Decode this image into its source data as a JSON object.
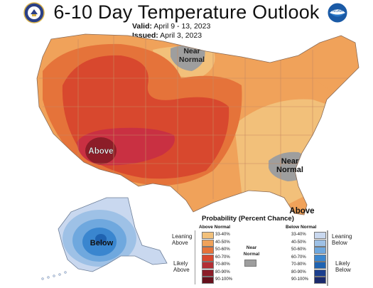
{
  "header": {
    "title": "6-10 Day Temperature Outlook",
    "valid_label": "Valid:",
    "valid_value": "April 9 - 13, 2023",
    "issued_label": "Issued:",
    "issued_value": "April 3, 2023"
  },
  "logos": {
    "left": "doc-seal-icon",
    "right": "noaa-logo-icon"
  },
  "map_labels": {
    "near_normal_north": "Near\nNormal",
    "near_normal_southeast": "Near\nNormal",
    "above_southwest": "Above",
    "above_florida": "Above",
    "below_alaska": "Below"
  },
  "legend": {
    "title": "Probability (Percent Chance)",
    "above_header": "Above Normal",
    "below_header": "Below Normal",
    "near_normal_label": "Near\nNormal",
    "leaning_above": "Leaning\nAbove",
    "likely_above": "Likely\nAbove",
    "leaning_below": "Leaning\nBelow",
    "likely_below": "Likely\nBelow",
    "ranges": [
      "33-40%",
      "40-50%",
      "50-60%",
      "60-70%",
      "70-80%",
      "80-90%",
      "90-100%"
    ],
    "above_colors": [
      "#f2c07a",
      "#f0a25a",
      "#e5733a",
      "#d8482e",
      "#b32f35",
      "#8c1d28",
      "#66101c"
    ],
    "below_colors": [
      "#c9d8ef",
      "#9ec1e6",
      "#6fa8de",
      "#3a86cf",
      "#1f63b1",
      "#1b3f8e",
      "#1a2a6c"
    ],
    "near_normal_color": "#9e9e9e"
  }
}
